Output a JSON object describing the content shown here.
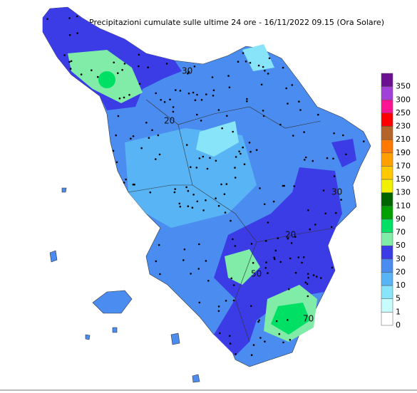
{
  "title": "Precipitazioni cumulate sulle ultime 24 ore - 16/11/2022 09.15 (Ora Solare)",
  "legend": [
    {
      "value": 350,
      "color": "#6a1090"
    },
    {
      "value": 300,
      "color": "#a040d8"
    },
    {
      "value": 250,
      "color": "#ff1493"
    },
    {
      "value": 230,
      "color": "#ff0000"
    },
    {
      "value": 210,
      "color": "#b46428"
    },
    {
      "value": 190,
      "color": "#ff7800"
    },
    {
      "value": 170,
      "color": "#ffa000"
    },
    {
      "value": 150,
      "color": "#ffc800"
    },
    {
      "value": 130,
      "color": "#f0f000"
    },
    {
      "value": 110,
      "color": "#006400"
    },
    {
      "value": 90,
      "color": "#00a000"
    },
    {
      "value": 70,
      "color": "#00e064"
    },
    {
      "value": 50,
      "color": "#80eca8"
    },
    {
      "value": 30,
      "color": "#3c3ce6"
    },
    {
      "value": 20,
      "color": "#4a8cf0"
    },
    {
      "value": 10,
      "color": "#58b4f4"
    },
    {
      "value": 5,
      "color": "#88e4f8"
    },
    {
      "value": 1,
      "color": "#c8fcfc"
    },
    {
      "value": 0,
      "color": "#ffffff"
    }
  ],
  "contour_labels": [
    "20",
    "20",
    "30",
    "30",
    "50",
    "70"
  ]
}
